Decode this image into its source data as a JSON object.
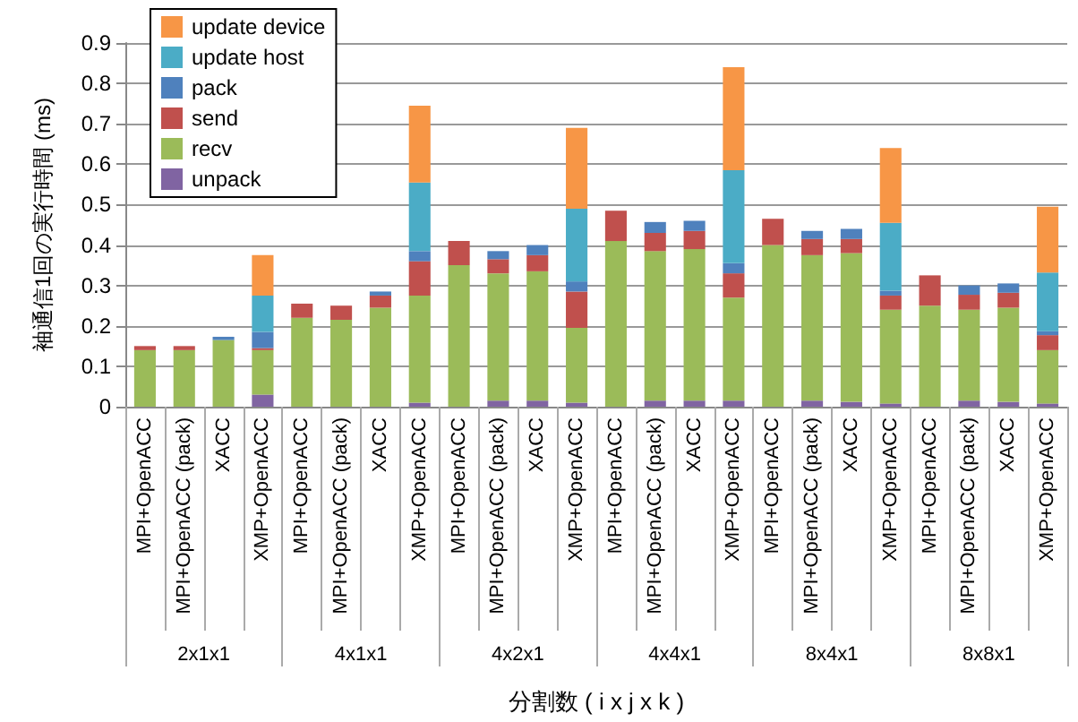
{
  "chart_data": {
    "type": "bar",
    "stacked": true,
    "ylabel": "袖通信1回の実行時間 (ms)",
    "xlabel": "分割数 ( i x j x k )",
    "categories": [
      "MPI+OpenACC",
      "MPI+OpenACC (pack)",
      "XACC",
      "XMP+OpenACC",
      "MPI+OpenACC",
      "MPI+OpenACC (pack)",
      "XACC",
      "XMP+OpenACC",
      "MPI+OpenACC",
      "MPI+OpenACC (pack)",
      "XACC",
      "XMP+OpenACC",
      "MPI+OpenACC",
      "MPI+OpenACC (pack)",
      "XACC",
      "XMP+OpenACC",
      "MPI+OpenACC",
      "MPI+OpenACC (pack)",
      "XACC",
      "XMP+OpenACC",
      "MPI+OpenACC",
      "MPI+OpenACC (pack)",
      "XACC",
      "XMP+OpenACC"
    ],
    "annotations": [
      "2x1x1",
      "4x1x1",
      "4x2x1",
      "4x4x1",
      "8x4x1",
      "8x8x1"
    ],
    "series": [
      {
        "name": "unpack",
        "color": "#8064a2",
        "values": [
          0,
          0,
          0,
          0.03,
          0,
          0,
          0,
          0.01,
          0,
          0.015,
          0.015,
          0.01,
          0,
          0.015,
          0.015,
          0.015,
          0,
          0.015,
          0.012,
          0.008,
          0,
          0.015,
          0.012,
          0.008
        ]
      },
      {
        "name": "recv",
        "color": "#9bbb59",
        "values": [
          0.14,
          0.14,
          0.165,
          0.11,
          0.22,
          0.215,
          0.245,
          0.265,
          0.35,
          0.315,
          0.32,
          0.185,
          0.41,
          0.37,
          0.375,
          0.255,
          0.4,
          0.36,
          0.368,
          0.232,
          0.25,
          0.225,
          0.233,
          0.132
        ]
      },
      {
        "name": "send",
        "color": "#c0504d",
        "values": [
          0.01,
          0.01,
          0,
          0.005,
          0.035,
          0.035,
          0.03,
          0.085,
          0.06,
          0.035,
          0.04,
          0.09,
          0.075,
          0.045,
          0.045,
          0.06,
          0.065,
          0.04,
          0.035,
          0.035,
          0.075,
          0.037,
          0.037,
          0.037
        ]
      },
      {
        "name": "pack",
        "color": "#4f81bd",
        "values": [
          0,
          0,
          0.008,
          0.04,
          0,
          0,
          0.01,
          0.025,
          0,
          0.02,
          0.025,
          0.025,
          0,
          0.027,
          0.025,
          0.025,
          0,
          0.02,
          0.025,
          0.012,
          0,
          0.023,
          0.023,
          0.01
        ]
      },
      {
        "name": "update host",
        "color": "#4bacc6",
        "values": [
          0,
          0,
          0,
          0.09,
          0,
          0,
          0,
          0.17,
          0,
          0,
          0,
          0.18,
          0,
          0,
          0,
          0.23,
          0,
          0,
          0,
          0.168,
          0,
          0,
          0,
          0.145
        ]
      },
      {
        "name": "update device",
        "color": "#f79646",
        "values": [
          0,
          0,
          0,
          0.1,
          0,
          0,
          0,
          0.19,
          0,
          0,
          0,
          0.2,
          0,
          0,
          0,
          0.255,
          0,
          0,
          0,
          0.185,
          0,
          0,
          0,
          0.163
        ]
      }
    ],
    "ylim": [
      0,
      0.9
    ],
    "yticks": [
      0,
      0.1,
      0.2,
      0.3,
      0.4,
      0.5,
      0.6,
      0.7,
      0.8,
      0.9
    ],
    "grid": "y",
    "legend": "top left"
  }
}
